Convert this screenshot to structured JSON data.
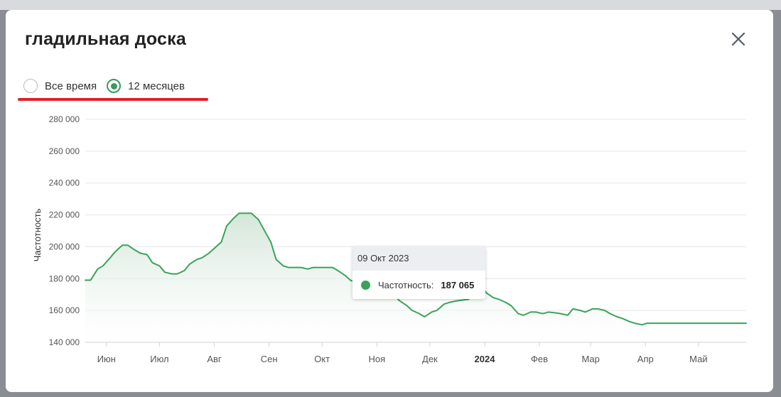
{
  "modal": {
    "title": "гладильная доска"
  },
  "period": {
    "options": [
      {
        "label": "Все время",
        "checked": false
      },
      {
        "label": "12 месяцев",
        "checked": true
      }
    ]
  },
  "tooltip": {
    "date": "09 Окт 2023",
    "series_label": "Частотность:",
    "value": "187 065"
  },
  "colors": {
    "line": "#3aa35a",
    "highlight": "#e0202a"
  },
  "chart_data": {
    "type": "area",
    "ylabel": "Частотность",
    "ylim": [
      140000,
      280000
    ],
    "yticks": [
      140000,
      160000,
      180000,
      200000,
      220000,
      240000,
      260000,
      280000
    ],
    "ytick_labels": [
      "140 000",
      "160 000",
      "180 000",
      "200 000",
      "220 000",
      "240 000",
      "260 000",
      "280 000"
    ],
    "xlim": [
      "2023-05-20",
      "2024-05-28"
    ],
    "xticks": [
      {
        "date": "2023-06-01",
        "label": "Июн",
        "bold": false
      },
      {
        "date": "2023-07-01",
        "label": "Июл",
        "bold": false
      },
      {
        "date": "2023-08-01",
        "label": "Авг",
        "bold": false
      },
      {
        "date": "2023-09-01",
        "label": "Сен",
        "bold": false
      },
      {
        "date": "2023-10-01",
        "label": "Окт",
        "bold": false
      },
      {
        "date": "2023-11-01",
        "label": "Ноя",
        "bold": false
      },
      {
        "date": "2023-12-01",
        "label": "Дек",
        "bold": false
      },
      {
        "date": "2024-01-01",
        "label": "2024",
        "bold": true
      },
      {
        "date": "2024-02-01",
        "label": "Фев",
        "bold": false
      },
      {
        "date": "2024-03-01",
        "label": "Мар",
        "bold": false
      },
      {
        "date": "2024-04-01",
        "label": "Апр",
        "bold": false
      },
      {
        "date": "2024-05-01",
        "label": "Май",
        "bold": false
      }
    ],
    "series": [
      {
        "x": [
          "2023-05-20",
          "2023-05-23",
          "2023-05-27",
          "2023-05-30",
          "2023-06-03",
          "2023-06-06",
          "2023-06-10",
          "2023-06-13",
          "2023-06-17",
          "2023-06-20",
          "2023-06-24",
          "2023-06-27",
          "2023-07-01",
          "2023-07-04",
          "2023-07-08",
          "2023-07-11",
          "2023-07-15",
          "2023-07-18",
          "2023-07-22",
          "2023-07-25",
          "2023-07-29",
          "2023-08-01",
          "2023-08-05",
          "2023-08-08",
          "2023-08-12",
          "2023-08-15",
          "2023-08-19",
          "2023-08-22",
          "2023-08-26",
          "2023-08-29",
          "2023-09-02",
          "2023-09-05",
          "2023-09-09",
          "2023-09-12",
          "2023-09-16",
          "2023-09-19",
          "2023-09-23",
          "2023-09-26",
          "2023-09-30",
          "2023-10-03",
          "2023-10-07",
          "2023-10-10",
          "2023-10-14",
          "2023-10-17",
          "2023-10-21",
          "2023-10-24",
          "2023-10-28",
          "2023-10-31",
          "2023-11-04",
          "2023-11-07",
          "2023-11-11",
          "2023-11-14",
          "2023-11-18",
          "2023-11-21",
          "2023-11-25",
          "2023-11-28",
          "2023-12-02",
          "2023-12-05",
          "2023-12-09",
          "2023-12-12",
          "2023-12-16",
          "2023-12-19",
          "2023-12-23",
          "2023-12-26",
          "2023-12-30",
          "2024-01-02",
          "2024-01-06",
          "2024-01-09",
          "2024-01-13",
          "2024-01-16",
          "2024-01-20",
          "2024-01-23",
          "2024-01-27",
          "2024-01-30",
          "2024-02-03",
          "2024-02-06",
          "2024-02-10",
          "2024-02-13",
          "2024-02-17",
          "2024-02-20",
          "2024-02-24",
          "2024-02-27",
          "2024-03-02",
          "2024-03-05",
          "2024-03-09",
          "2024-03-12",
          "2024-03-16",
          "2024-03-19",
          "2024-03-23",
          "2024-03-26",
          "2024-03-30",
          "2024-04-02",
          "2024-04-06",
          "2024-04-09",
          "2024-04-13",
          "2024-04-16",
          "2024-04-20",
          "2024-04-23",
          "2024-04-27",
          "2024-04-30",
          "2024-05-04",
          "2024-05-07",
          "2024-05-11",
          "2024-05-14",
          "2024-05-18",
          "2024-05-21",
          "2024-05-25",
          "2024-05-28"
        ],
        "y": [
          179000,
          179000,
          186000,
          188000,
          193000,
          197000,
          201000,
          201000,
          198000,
          196000,
          195000,
          190000,
          188000,
          184000,
          183000,
          183000,
          185000,
          189000,
          192000,
          193000,
          196000,
          199000,
          203000,
          213000,
          218000,
          221000,
          221000,
          221000,
          217000,
          211000,
          203000,
          192000,
          188000,
          187000,
          187000,
          187000,
          186000,
          187000,
          187000,
          187000,
          187000,
          185000,
          182000,
          179000,
          177000,
          176000,
          174000,
          172000,
          171000,
          170000,
          169000,
          166000,
          163000,
          160000,
          158000,
          156000,
          159000,
          160000,
          164000,
          165000,
          166000,
          166500,
          167000,
          170000,
          176000,
          171000,
          168000,
          167000,
          165000,
          163000,
          158000,
          157000,
          159000,
          159000,
          158000,
          159000,
          158500,
          158000,
          157000,
          161000,
          160000,
          159000,
          161000,
          161000,
          160000,
          158000,
          156000,
          155000,
          153000,
          152000,
          151000,
          152000,
          152000,
          152000,
          152000,
          152000,
          152000,
          152000,
          152000,
          152000,
          152000,
          152000,
          152000,
          152000,
          152000,
          152000,
          152000,
          152000
        ]
      }
    ],
    "highlight": {
      "date": "2023-10-09",
      "value": 187065
    }
  }
}
